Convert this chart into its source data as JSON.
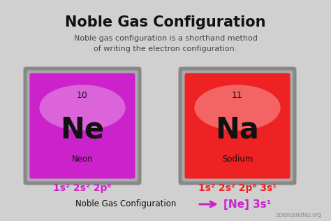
{
  "title": "Noble Gas Configuration",
  "subtitle_line1": "Noble gas configuration is a shorthand method",
  "subtitle_line2": "of writing the electron configuration.",
  "bg_color": "#d0d0d0",
  "title_color": "#111111",
  "subtitle_color": "#444444",
  "ne_atomic_num": "10",
  "ne_symbol": "Ne",
  "ne_name": "Neon",
  "ne_config": "1s² 2s² 2p⁶",
  "ne_box_bg": "#cc22cc",
  "ne_box_border": "#777777",
  "ne_text_color": "#111111",
  "ne_config_color": "#cc22cc",
  "na_atomic_num": "11",
  "na_symbol": "Na",
  "na_name": "Sodium",
  "na_config": "1s² 2s² 2p⁶ 3s¹",
  "na_box_bg": "#ee2222",
  "na_box_border": "#777777",
  "na_text_color": "#111111",
  "na_config_color": "#ee2222",
  "noble_gas_label": "Noble Gas Configuration",
  "noble_gas_result": "[Ne] 3s¹",
  "arrow_color": "#cc22cc",
  "watermark": "sciencenotes.org"
}
